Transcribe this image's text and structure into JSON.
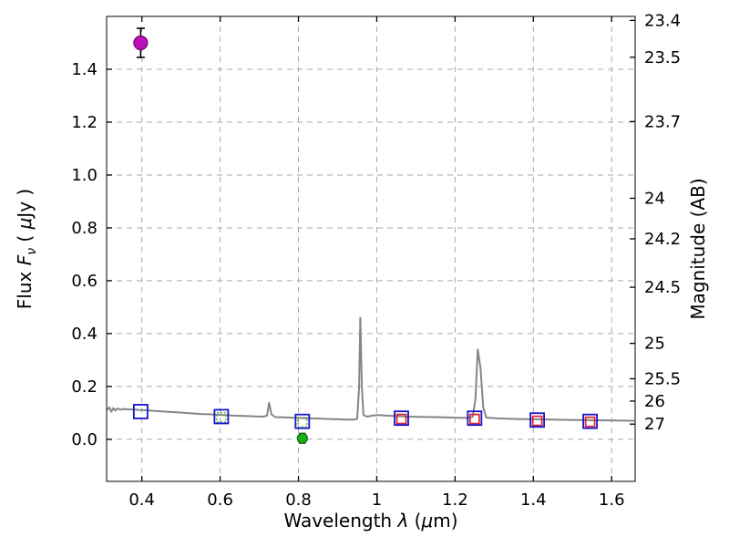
{
  "figure": {
    "background": "#ffffff",
    "axes_color": "#000000",
    "grid_color": "#aaaaaa",
    "spectrum_color": "#858585"
  },
  "chart_data": {
    "type": "line",
    "title": "",
    "xlabel_parts": [
      {
        "t": "Wavelength  ",
        "i": false
      },
      {
        "t": "λ",
        "i": true
      },
      {
        "t": " (",
        "i": false
      },
      {
        "t": "μ",
        "i": true
      },
      {
        "t": "m)",
        "i": false
      }
    ],
    "ylabel_left_parts": [
      {
        "t": "Flux  ",
        "i": false
      },
      {
        "t": "F",
        "i": true
      },
      {
        "t": "ν",
        "i": true,
        "sub": true
      },
      {
        "t": "  ( ",
        "i": false
      },
      {
        "t": "μ",
        "i": true
      },
      {
        "t": "Jy )",
        "i": false
      }
    ],
    "ylabel_right": "Magnitude (AB)",
    "xlim": [
      0.31,
      1.66
    ],
    "ylim": [
      -0.159,
      1.6
    ],
    "grid": true,
    "xticks": [
      0.4,
      0.6,
      0.8,
      1.0,
      1.2,
      1.4,
      1.6
    ],
    "xtick_labels": [
      "0.4",
      "0.6",
      "0.8",
      "1",
      "1.2",
      "1.4",
      "1.6"
    ],
    "yticks_left": [
      0.0,
      0.2,
      0.4,
      0.6,
      0.8,
      1.0,
      1.2,
      1.4
    ],
    "ytick_left_labels": [
      "0.0",
      "0.2",
      "0.4",
      "0.6",
      "0.8",
      "1.0",
      "1.2",
      "1.4"
    ],
    "yticks_right_mag": [
      23.4,
      23.5,
      23.7,
      24,
      24.2,
      24.5,
      25,
      25.5,
      26,
      27
    ],
    "ytick_right_labels": [
      "23.4",
      "23.5",
      "23.7",
      "24",
      "24.2",
      "24.5",
      "25",
      "25.5",
      "26",
      "27"
    ],
    "ab_zeropoint_ujy": 23.9,
    "spectrum": [
      [
        0.312,
        0.112
      ],
      [
        0.317,
        0.121
      ],
      [
        0.322,
        0.104
      ],
      [
        0.327,
        0.118
      ],
      [
        0.332,
        0.109
      ],
      [
        0.338,
        0.117
      ],
      [
        0.345,
        0.112
      ],
      [
        0.355,
        0.115
      ],
      [
        0.365,
        0.113
      ],
      [
        0.375,
        0.113
      ],
      [
        0.385,
        0.112
      ],
      [
        0.395,
        0.111
      ],
      [
        0.41,
        0.11
      ],
      [
        0.43,
        0.108
      ],
      [
        0.45,
        0.106
      ],
      [
        0.47,
        0.104
      ],
      [
        0.49,
        0.102
      ],
      [
        0.51,
        0.1
      ],
      [
        0.53,
        0.098
      ],
      [
        0.55,
        0.096
      ],
      [
        0.57,
        0.095
      ],
      [
        0.59,
        0.093
      ],
      [
        0.61,
        0.092
      ],
      [
        0.63,
        0.09
      ],
      [
        0.65,
        0.089
      ],
      [
        0.67,
        0.088
      ],
      [
        0.69,
        0.087
      ],
      [
        0.71,
        0.086
      ],
      [
        0.72,
        0.09
      ],
      [
        0.725,
        0.138
      ],
      [
        0.731,
        0.095
      ],
      [
        0.74,
        0.084
      ],
      [
        0.76,
        0.083
      ],
      [
        0.78,
        0.082
      ],
      [
        0.8,
        0.081
      ],
      [
        0.82,
        0.08
      ],
      [
        0.84,
        0.079
      ],
      [
        0.86,
        0.078
      ],
      [
        0.88,
        0.077
      ],
      [
        0.9,
        0.076
      ],
      [
        0.92,
        0.075
      ],
      [
        0.94,
        0.074
      ],
      [
        0.95,
        0.078
      ],
      [
        0.955,
        0.2
      ],
      [
        0.958,
        0.46
      ],
      [
        0.962,
        0.2
      ],
      [
        0.966,
        0.092
      ],
      [
        0.975,
        0.086
      ],
      [
        0.99,
        0.09
      ],
      [
        1.005,
        0.092
      ],
      [
        1.02,
        0.09
      ],
      [
        1.05,
        0.088
      ],
      [
        1.08,
        0.086
      ],
      [
        1.11,
        0.085
      ],
      [
        1.14,
        0.084
      ],
      [
        1.17,
        0.083
      ],
      [
        1.2,
        0.082
      ],
      [
        1.23,
        0.081
      ],
      [
        1.245,
        0.085
      ],
      [
        1.252,
        0.15
      ],
      [
        1.258,
        0.34
      ],
      [
        1.265,
        0.27
      ],
      [
        1.272,
        0.12
      ],
      [
        1.28,
        0.082
      ],
      [
        1.31,
        0.079
      ],
      [
        1.36,
        0.077
      ],
      [
        1.41,
        0.076
      ],
      [
        1.46,
        0.074
      ],
      [
        1.51,
        0.073
      ],
      [
        1.56,
        0.072
      ],
      [
        1.61,
        0.071
      ],
      [
        1.658,
        0.07
      ]
    ],
    "observed_squares": {
      "color": "#1515cc",
      "size": 15,
      "points": [
        [
          0.397,
          0.105
        ],
        [
          0.603,
          0.086
        ],
        [
          0.81,
          0.068
        ],
        [
          1.063,
          0.08
        ],
        [
          1.25,
          0.08
        ],
        [
          1.41,
          0.073
        ],
        [
          1.545,
          0.068
        ]
      ]
    },
    "model_squares_red": {
      "color": "#dd2233",
      "size": 10,
      "points": [
        [
          1.063,
          0.077
        ],
        [
          1.25,
          0.077
        ],
        [
          1.41,
          0.07
        ],
        [
          1.545,
          0.066
        ]
      ]
    },
    "model_squares_green": {
      "color": "#55aa33",
      "size": 10,
      "points": [
        [
          0.603,
          0.083
        ],
        [
          0.81,
          0.065
        ]
      ]
    },
    "magenta_point": {
      "x": 0.397,
      "y": 1.5,
      "yerr": 0.055,
      "fill": "#bb10bb",
      "edge": "#77006f"
    },
    "green_point": {
      "x": 0.81,
      "y": 0.004,
      "yerr": 0.018,
      "fill": "#17ad17",
      "edge": "#0d6b0d"
    }
  }
}
